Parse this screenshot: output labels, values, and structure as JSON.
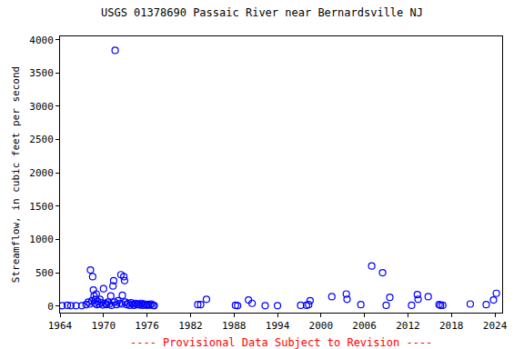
{
  "chart_data": {
    "type": "scatter",
    "title": "USGS 01378690 Passaic River near Bernardsville NJ",
    "x_label": "",
    "y_label": "Streamflow, in cubic feet per second",
    "annotation": "---- Provisional Data Subject to Revision ----",
    "marker": "open_circle",
    "color": "#0000ff",
    "grid": false,
    "x": [
      1964.3,
      1965.0,
      1965.5,
      1966.2,
      1967.0,
      1967.6,
      1967.9,
      1968.1,
      1968.2,
      1968.4,
      1968.5,
      1968.6,
      1968.7,
      1968.8,
      1968.9,
      1969.0,
      1969.1,
      1969.2,
      1969.4,
      1969.5,
      1969.7,
      1969.9,
      1970.0,
      1970.2,
      1970.4,
      1970.6,
      1970.8,
      1971.0,
      1971.1,
      1971.3,
      1971.4,
      1971.5,
      1971.6,
      1971.8,
      1972.0,
      1972.2,
      1972.4,
      1972.5,
      1972.6,
      1972.8,
      1972.9,
      1973.0,
      1973.2,
      1973.4,
      1973.6,
      1973.8,
      1974.0,
      1974.2,
      1974.4,
      1974.6,
      1974.8,
      1975.0,
      1975.2,
      1975.4,
      1975.6,
      1975.8,
      1976.0,
      1976.2,
      1976.4,
      1976.6,
      1976.8,
      1977.0,
      1983.0,
      1983.4,
      1984.2,
      1988.2,
      1988.5,
      1990.0,
      1990.5,
      1992.3,
      1994.0,
      1997.2,
      1998.0,
      1998.3,
      1998.5,
      2001.5,
      2003.5,
      2003.6,
      2005.5,
      2007.0,
      2008.5,
      2009.0,
      2009.5,
      2012.5,
      2013.3,
      2013.4,
      2014.8,
      2016.3,
      2016.5,
      2016.8,
      2020.6,
      2022.8,
      2023.8,
      2024.2
    ],
    "values": [
      5,
      10,
      5,
      5,
      5,
      20,
      60,
      30,
      540,
      80,
      440,
      240,
      150,
      40,
      100,
      180,
      20,
      70,
      30,
      100,
      50,
      15,
      260,
      40,
      20,
      60,
      30,
      150,
      10,
      300,
      380,
      60,
      3840,
      20,
      80,
      40,
      470,
      30,
      160,
      440,
      380,
      60,
      20,
      40,
      10,
      50,
      30,
      10,
      40,
      20,
      30,
      15,
      40,
      10,
      30,
      20,
      10,
      25,
      15,
      30,
      10,
      5,
      20,
      20,
      100,
      10,
      5,
      90,
      40,
      5,
      5,
      10,
      10,
      20,
      80,
      140,
      180,
      100,
      20,
      600,
      500,
      10,
      130,
      10,
      170,
      100,
      140,
      20,
      10,
      10,
      30,
      20,
      90,
      190
    ],
    "xlim": [
      1964,
      2025
    ],
    "xticks": [
      1964,
      1970,
      1976,
      1982,
      1988,
      1994,
      2000,
      2006,
      2012,
      2018,
      2024
    ],
    "ylim": [
      -100,
      4050
    ],
    "yticks": [
      0,
      500,
      1000,
      1500,
      2000,
      2500,
      3000,
      3500,
      4000
    ]
  }
}
